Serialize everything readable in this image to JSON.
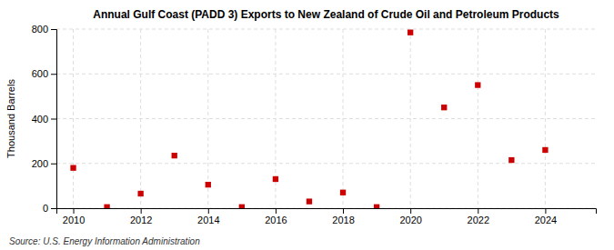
{
  "chart_data": {
    "type": "scatter",
    "title": "Annual Gulf Coast (PADD 3) Exports to New Zealand of Crude Oil and Petroleum Products",
    "ylabel": "Thousand Barrels",
    "source": "Source: U.S. Energy Information Administration",
    "x": [
      2010,
      2011,
      2012,
      2013,
      2014,
      2015,
      2016,
      2017,
      2018,
      2019,
      2020,
      2021,
      2022,
      2023,
      2024
    ],
    "values": [
      180,
      5,
      65,
      235,
      105,
      5,
      130,
      30,
      70,
      5,
      785,
      450,
      550,
      215,
      260
    ],
    "color": "#cc0000",
    "marker": "square",
    "xlim": [
      2009.5,
      2025.5
    ],
    "xticks": [
      2010,
      2012,
      2014,
      2016,
      2018,
      2020,
      2022,
      2024
    ],
    "ylim": [
      0,
      800
    ],
    "yticks": [
      0,
      200,
      400,
      600,
      800
    ],
    "grid": true
  }
}
